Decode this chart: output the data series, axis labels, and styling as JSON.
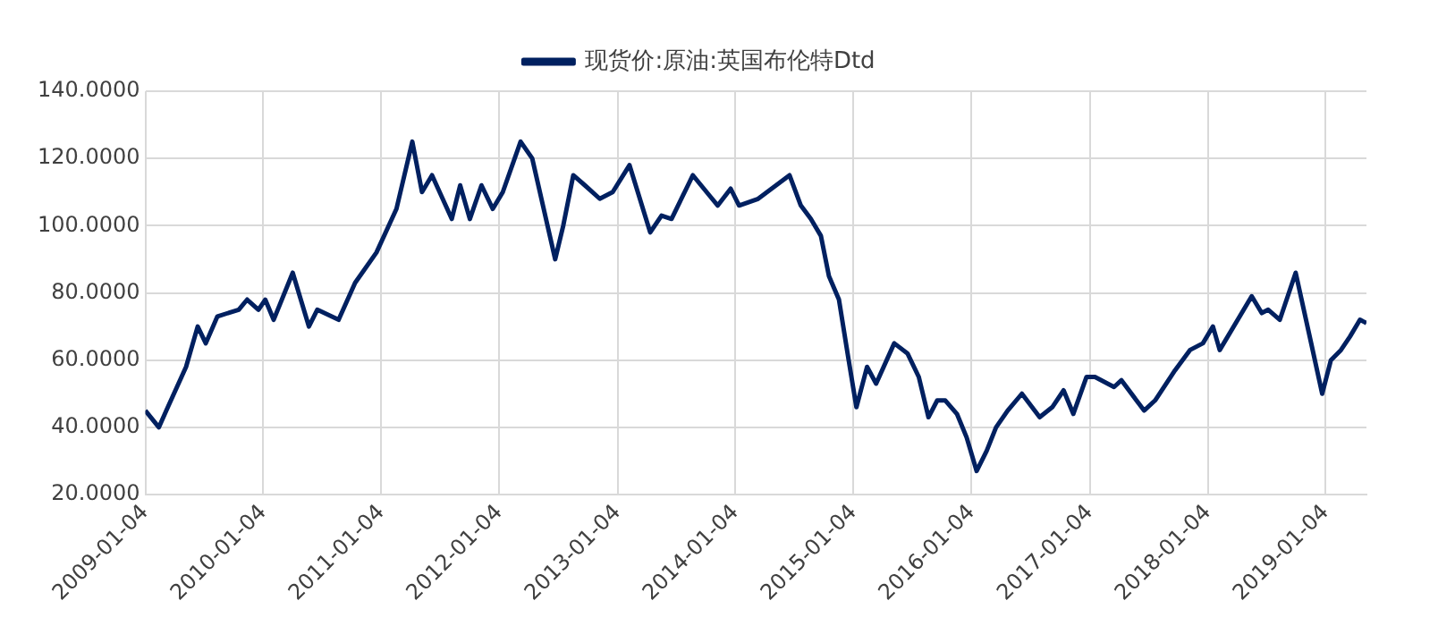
{
  "chart_data": {
    "type": "line",
    "x": [
      "2009-01-04",
      "2009-02-15",
      "2009-03-10",
      "2009-05-10",
      "2009-06-15",
      "2009-07-10",
      "2009-08-15",
      "2009-10-20",
      "2009-11-15",
      "2009-12-20",
      "2010-01-10",
      "2010-02-05",
      "2010-04-05",
      "2010-05-25",
      "2010-06-20",
      "2010-08-25",
      "2010-10-15",
      "2010-12-20",
      "2011-02-20",
      "2011-04-10",
      "2011-05-10",
      "2011-06-10",
      "2011-08-10",
      "2011-09-05",
      "2011-10-05",
      "2011-11-10",
      "2011-12-15",
      "2012-01-15",
      "2012-03-10",
      "2012-04-15",
      "2012-06-25",
      "2012-07-20",
      "2012-08-20",
      "2012-09-25",
      "2012-11-10",
      "2012-12-20",
      "2013-02-10",
      "2013-04-15",
      "2013-05-20",
      "2013-06-20",
      "2013-08-25",
      "2013-10-15",
      "2013-11-10",
      "2013-12-20",
      "2014-01-15",
      "2014-03-15",
      "2014-06-20",
      "2014-07-25",
      "2014-08-25",
      "2014-09-25",
      "2014-10-20",
      "2014-11-20",
      "2014-12-20",
      "2015-01-13",
      "2015-02-15",
      "2015-03-15",
      "2015-05-10",
      "2015-06-20",
      "2015-07-25",
      "2015-08-24",
      "2015-09-20",
      "2015-10-15",
      "2015-11-20",
      "2015-12-20",
      "2016-01-20",
      "2016-02-20",
      "2016-03-20",
      "2016-04-25",
      "2016-06-08",
      "2016-08-02",
      "2016-09-10",
      "2016-10-15",
      "2016-11-14",
      "2016-12-25",
      "2017-01-20",
      "2017-03-20",
      "2017-04-12",
      "2017-06-21",
      "2017-07-25",
      "2017-09-25",
      "2017-11-10",
      "2017-12-20",
      "2018-01-20",
      "2018-02-10",
      "2018-05-20",
      "2018-06-20",
      "2018-07-10",
      "2018-08-15",
      "2018-10-03",
      "2018-11-20",
      "2018-12-24",
      "2019-01-20",
      "2019-02-20",
      "2019-03-20",
      "2019-04-20",
      "2019-05-10"
    ],
    "series": [
      {
        "name": "现货价:原油:英国布伦特Dtd",
        "color": "#002060",
        "values": [
          45,
          40,
          45,
          58,
          70,
          65,
          73,
          75,
          78,
          75,
          78,
          72,
          86,
          70,
          75,
          72,
          83,
          92,
          105,
          125,
          110,
          115,
          102,
          112,
          102,
          112,
          105,
          110,
          125,
          120,
          90,
          100,
          115,
          112,
          108,
          110,
          118,
          98,
          103,
          102,
          115,
          109,
          106,
          111,
          106,
          108,
          115,
          106,
          102,
          97,
          85,
          78,
          60,
          46,
          58,
          53,
          65,
          62,
          55,
          43,
          48,
          48,
          44,
          37,
          27,
          33,
          40,
          45,
          50,
          43,
          46,
          51,
          44,
          55,
          55,
          52,
          54,
          45,
          48,
          57,
          63,
          65,
          70,
          63,
          79,
          74,
          75,
          72,
          86,
          65,
          50,
          60,
          63,
          67,
          72,
          71
        ]
      }
    ],
    "xlim": [
      "2009-01-04",
      "2019-05-10"
    ],
    "xticks": [
      "2009-01-04",
      "2010-01-04",
      "2011-01-04",
      "2012-01-04",
      "2013-01-04",
      "2014-01-04",
      "2015-01-04",
      "2016-01-04",
      "2017-01-04",
      "2018-01-04",
      "2019-01-04"
    ],
    "ylim": [
      20,
      140
    ],
    "yticks": [
      {
        "value": 20,
        "label": "20.0000"
      },
      {
        "value": 40,
        "label": "40.0000"
      },
      {
        "value": 60,
        "label": "60.0000"
      },
      {
        "value": 80,
        "label": "80.0000"
      },
      {
        "value": 100,
        "label": "100.0000"
      },
      {
        "value": 120,
        "label": "120.0000"
      },
      {
        "value": 140,
        "label": "140.0000"
      }
    ],
    "grid": true,
    "legend": "top",
    "marker": "none",
    "line_style": "solid"
  }
}
